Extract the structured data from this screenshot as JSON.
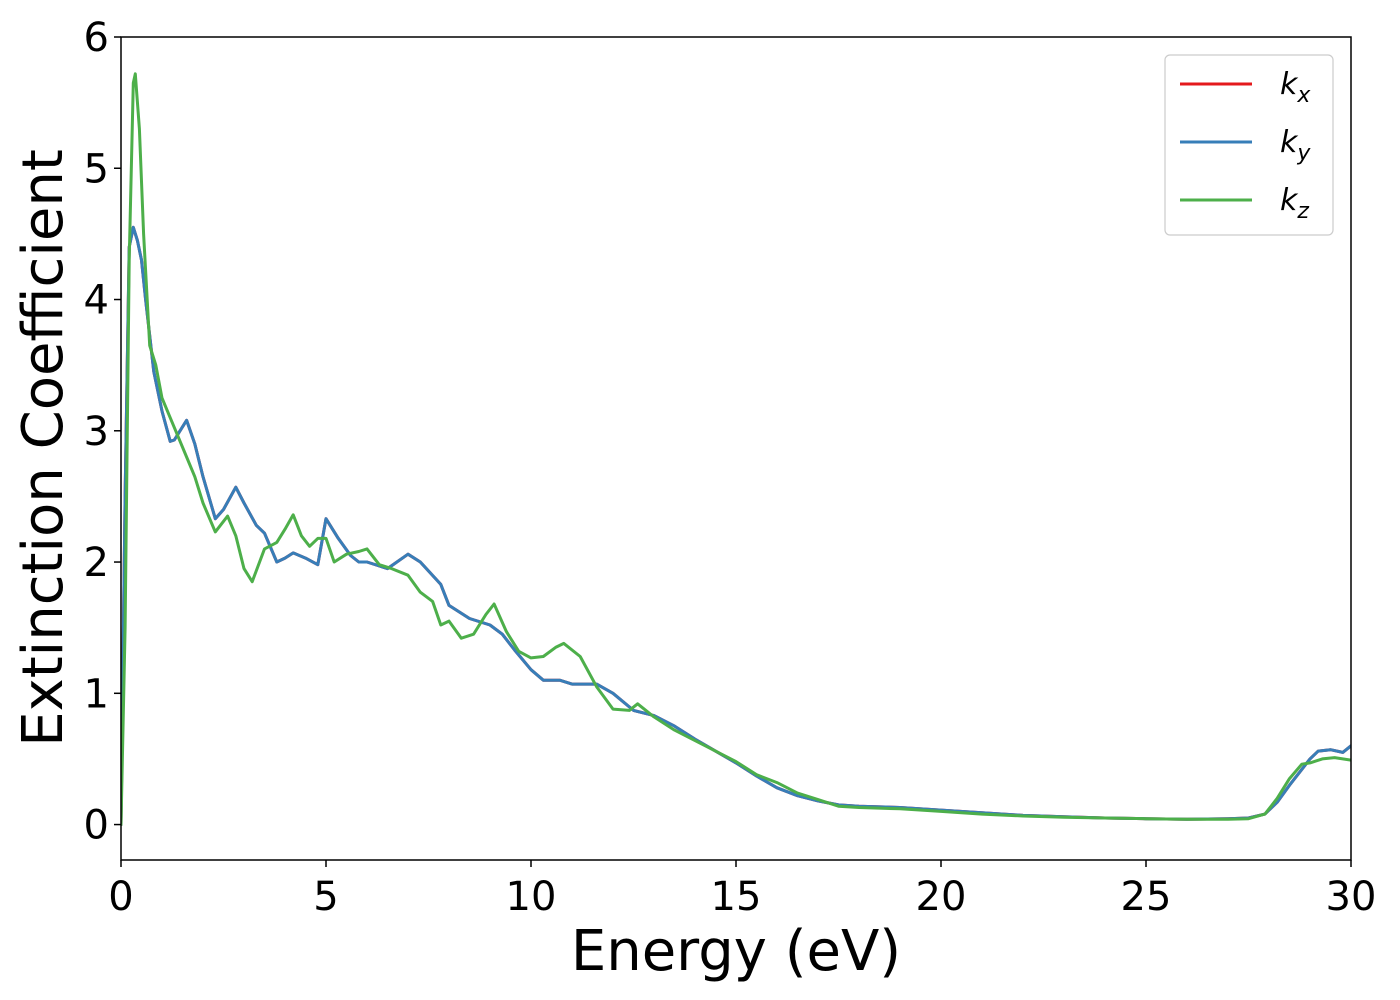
{
  "chart_data": {
    "type": "line",
    "xlabel": "Energy (eV)",
    "ylabel": "Extinction Coefficient",
    "xlim": [
      0,
      30
    ],
    "ylim": [
      -0.27,
      6.0
    ],
    "xticks": [
      0,
      5,
      10,
      15,
      20,
      25,
      30
    ],
    "yticks": [
      0,
      1,
      2,
      3,
      4,
      5,
      6
    ],
    "grid": false,
    "legend_position": "top-right",
    "series": [
      {
        "name": "k",
        "subscript": "x",
        "color": "#e41a1c",
        "x": [
          0,
          0.1,
          0.2,
          0.3,
          0.4,
          0.5,
          0.6,
          0.8,
          1.0,
          1.2,
          1.3,
          1.6,
          1.8,
          2.0,
          2.3,
          2.5,
          2.8,
          3.0,
          3.3,
          3.5,
          3.8,
          4.0,
          4.2,
          4.5,
          4.8,
          5.0,
          5.3,
          5.6,
          5.8,
          6.0,
          6.5,
          7.0,
          7.3,
          7.8,
          8.0,
          8.5,
          9.0,
          9.3,
          9.6,
          10.0,
          10.3,
          10.7,
          11.0,
          11.3,
          11.6,
          12.0,
          12.5,
          13.0,
          13.5,
          14.0,
          14.5,
          15.0,
          15.5,
          16.0,
          16.5,
          17.0,
          17.5,
          18.0,
          19.0,
          20.0,
          21.0,
          22.0,
          23.0,
          24.0,
          25.0,
          26.0,
          27.0,
          27.5,
          27.9,
          28.2,
          28.5,
          28.8,
          29.0,
          29.2,
          29.5,
          29.8,
          30.0
        ],
        "y": [
          0,
          2.5,
          4.4,
          4.55,
          4.45,
          4.3,
          4.0,
          3.45,
          3.15,
          2.92,
          2.93,
          3.08,
          2.9,
          2.65,
          2.33,
          2.4,
          2.57,
          2.45,
          2.28,
          2.22,
          2.0,
          2.03,
          2.07,
          2.03,
          1.98,
          2.33,
          2.18,
          2.05,
          2.0,
          2.0,
          1.95,
          2.06,
          2.0,
          1.83,
          1.67,
          1.57,
          1.52,
          1.45,
          1.33,
          1.18,
          1.1,
          1.1,
          1.07,
          1.07,
          1.07,
          1.0,
          0.87,
          0.83,
          0.75,
          0.65,
          0.56,
          0.47,
          0.37,
          0.28,
          0.22,
          0.18,
          0.15,
          0.14,
          0.13,
          0.11,
          0.09,
          0.07,
          0.06,
          0.05,
          0.045,
          0.04,
          0.045,
          0.05,
          0.08,
          0.17,
          0.3,
          0.42,
          0.5,
          0.56,
          0.57,
          0.55,
          0.6
        ]
      },
      {
        "name": "k",
        "subscript": "y",
        "color": "#377eb8",
        "x": [
          0,
          0.1,
          0.2,
          0.3,
          0.4,
          0.5,
          0.6,
          0.8,
          1.0,
          1.2,
          1.3,
          1.6,
          1.8,
          2.0,
          2.3,
          2.5,
          2.8,
          3.0,
          3.3,
          3.5,
          3.8,
          4.0,
          4.2,
          4.5,
          4.8,
          5.0,
          5.3,
          5.6,
          5.8,
          6.0,
          6.5,
          7.0,
          7.3,
          7.8,
          8.0,
          8.5,
          9.0,
          9.3,
          9.6,
          10.0,
          10.3,
          10.7,
          11.0,
          11.3,
          11.6,
          12.0,
          12.5,
          13.0,
          13.5,
          14.0,
          14.5,
          15.0,
          15.5,
          16.0,
          16.5,
          17.0,
          17.5,
          18.0,
          19.0,
          20.0,
          21.0,
          22.0,
          23.0,
          24.0,
          25.0,
          26.0,
          27.0,
          27.5,
          27.9,
          28.2,
          28.5,
          28.8,
          29.0,
          29.2,
          29.5,
          29.8,
          30.0
        ],
        "y": [
          0,
          2.5,
          4.4,
          4.55,
          4.45,
          4.3,
          4.0,
          3.45,
          3.15,
          2.92,
          2.93,
          3.08,
          2.9,
          2.65,
          2.33,
          2.4,
          2.57,
          2.45,
          2.28,
          2.22,
          2.0,
          2.03,
          2.07,
          2.03,
          1.98,
          2.33,
          2.18,
          2.05,
          2.0,
          2.0,
          1.95,
          2.06,
          2.0,
          1.83,
          1.67,
          1.57,
          1.52,
          1.45,
          1.33,
          1.18,
          1.1,
          1.1,
          1.07,
          1.07,
          1.07,
          1.0,
          0.87,
          0.83,
          0.75,
          0.65,
          0.56,
          0.47,
          0.37,
          0.28,
          0.22,
          0.18,
          0.15,
          0.14,
          0.13,
          0.11,
          0.09,
          0.07,
          0.06,
          0.05,
          0.045,
          0.04,
          0.045,
          0.05,
          0.08,
          0.17,
          0.3,
          0.42,
          0.5,
          0.56,
          0.57,
          0.55,
          0.6
        ]
      },
      {
        "name": "k",
        "subscript": "z",
        "color": "#4daf4a",
        "x": [
          0,
          0.1,
          0.2,
          0.3,
          0.35,
          0.45,
          0.55,
          0.7,
          0.85,
          1.0,
          1.2,
          1.4,
          1.6,
          1.8,
          2.0,
          2.3,
          2.6,
          2.8,
          3.0,
          3.2,
          3.5,
          3.8,
          4.0,
          4.2,
          4.4,
          4.6,
          4.8,
          5.0,
          5.2,
          5.5,
          5.8,
          6.0,
          6.3,
          6.6,
          7.0,
          7.3,
          7.6,
          7.8,
          8.0,
          8.3,
          8.6,
          8.9,
          9.1,
          9.4,
          9.7,
          10.0,
          10.3,
          10.6,
          10.8,
          11.2,
          11.6,
          12.0,
          12.4,
          12.6,
          13.0,
          13.5,
          14.0,
          14.5,
          15.0,
          15.5,
          16.0,
          16.5,
          17.0,
          17.5,
          18.0,
          19.0,
          20.0,
          21.0,
          22.0,
          23.0,
          24.0,
          25.0,
          26.0,
          27.0,
          27.5,
          27.9,
          28.2,
          28.5,
          28.8,
          29.0,
          29.3,
          29.6,
          30.0
        ],
        "y": [
          0,
          1.5,
          4.3,
          5.65,
          5.72,
          5.3,
          4.5,
          3.65,
          3.5,
          3.25,
          3.1,
          2.95,
          2.8,
          2.65,
          2.45,
          2.23,
          2.35,
          2.2,
          1.95,
          1.85,
          2.1,
          2.15,
          2.25,
          2.36,
          2.2,
          2.12,
          2.18,
          2.18,
          2.0,
          2.06,
          2.08,
          2.1,
          1.98,
          1.95,
          1.9,
          1.77,
          1.7,
          1.52,
          1.55,
          1.42,
          1.45,
          1.6,
          1.68,
          1.47,
          1.32,
          1.27,
          1.28,
          1.35,
          1.38,
          1.28,
          1.05,
          0.88,
          0.87,
          0.92,
          0.82,
          0.72,
          0.64,
          0.56,
          0.48,
          0.38,
          0.32,
          0.24,
          0.19,
          0.14,
          0.13,
          0.12,
          0.1,
          0.08,
          0.065,
          0.055,
          0.05,
          0.045,
          0.04,
          0.04,
          0.045,
          0.08,
          0.2,
          0.35,
          0.46,
          0.47,
          0.5,
          0.51,
          0.49
        ]
      }
    ]
  }
}
